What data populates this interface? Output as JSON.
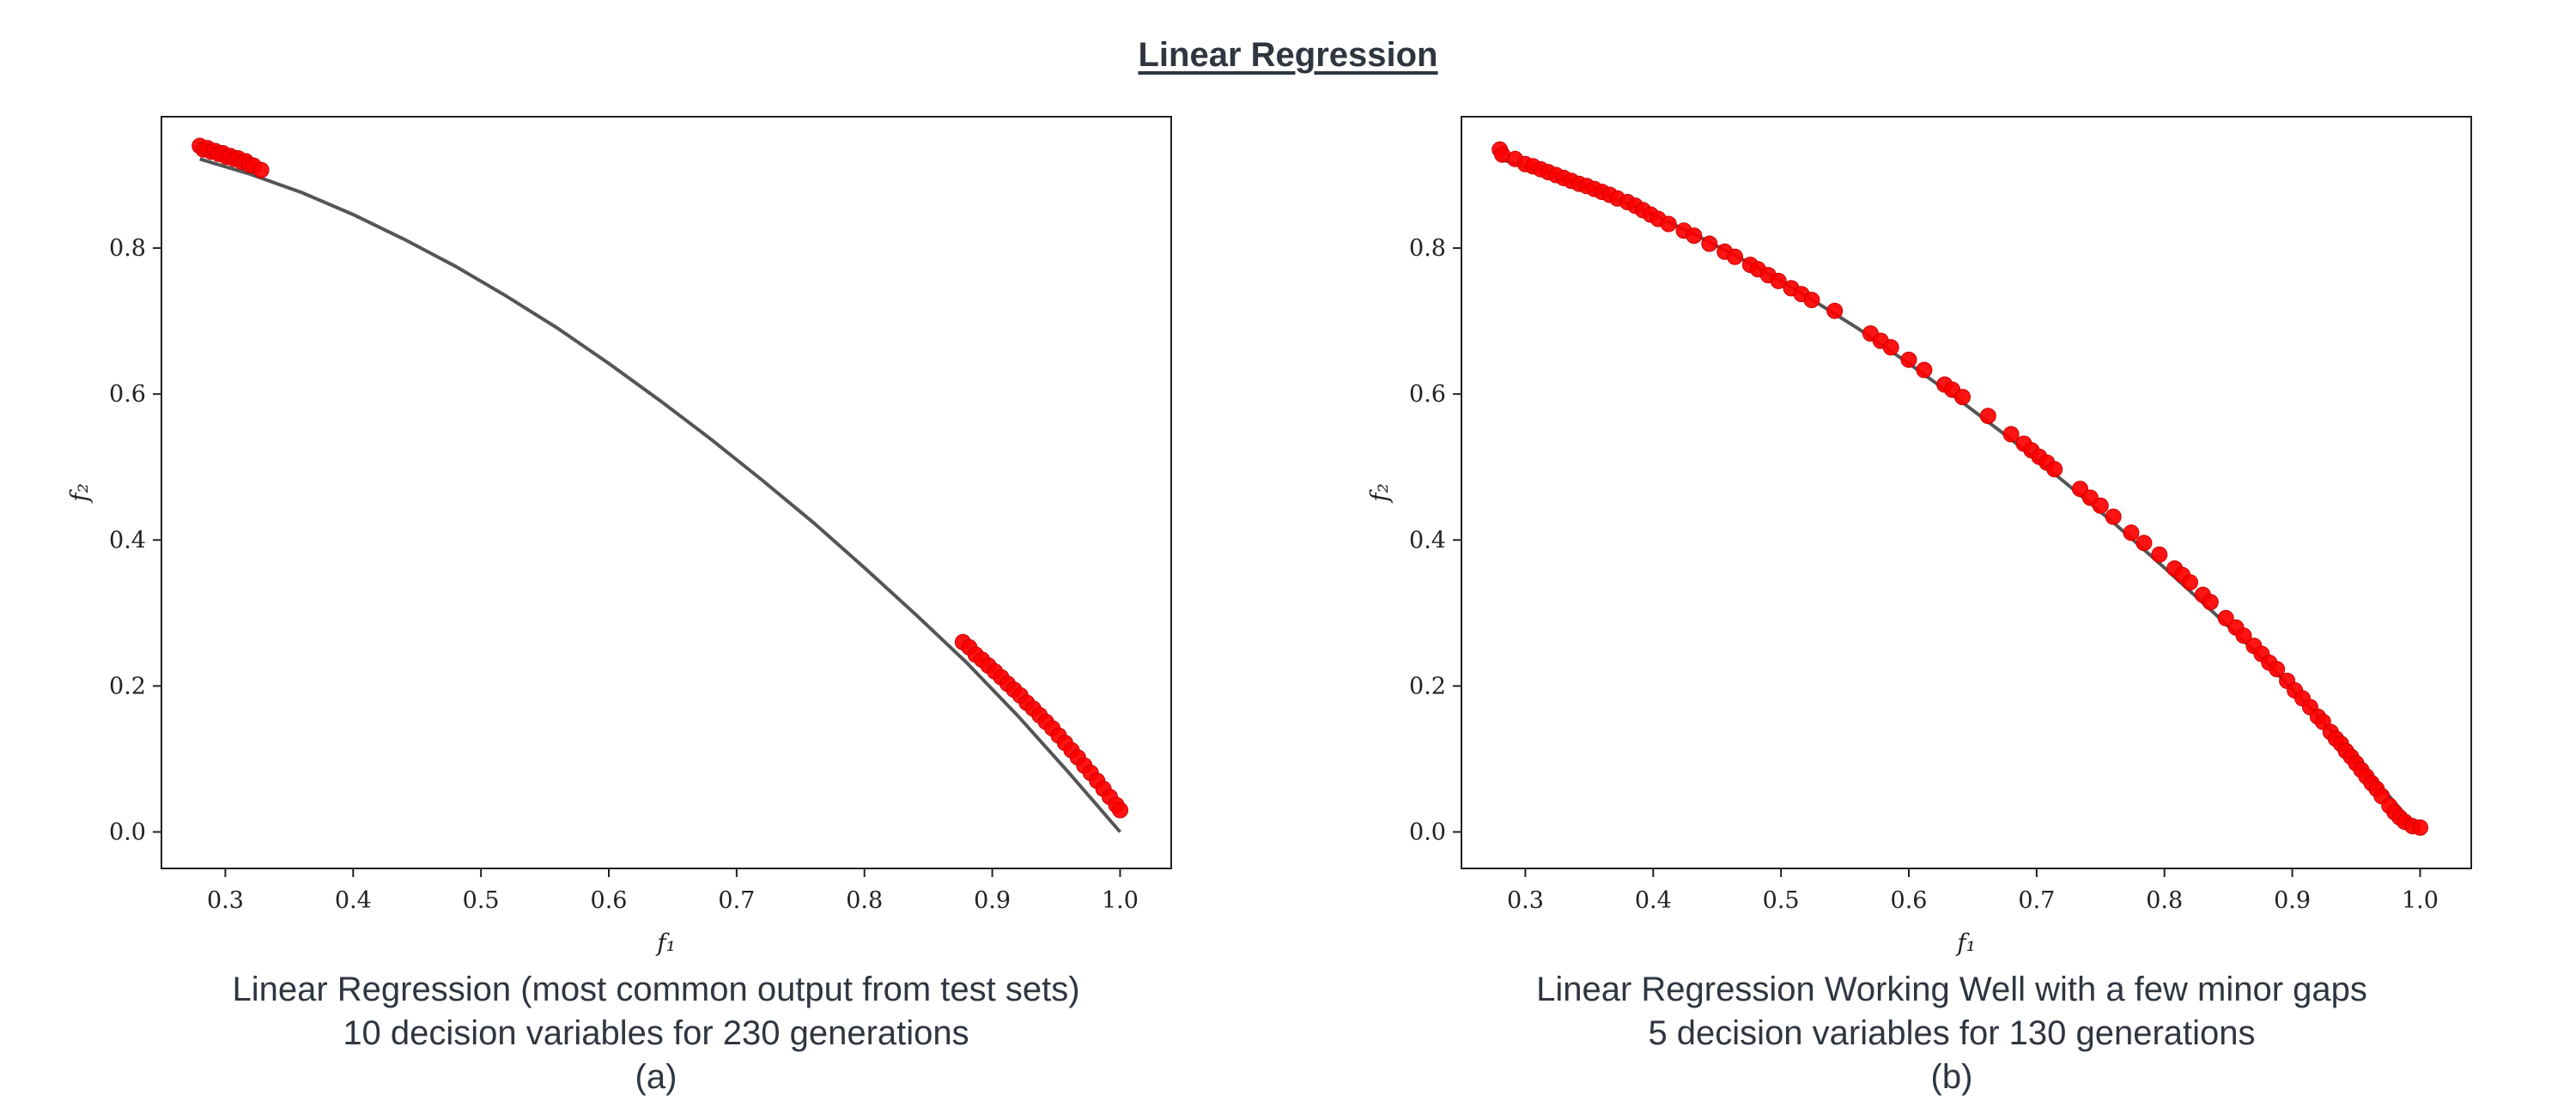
{
  "title": "Linear Regression",
  "chart_data": [
    {
      "type": "scatter",
      "panel": "(a)",
      "xlabel": "f₁",
      "ylabel": "f₂",
      "xlim": [
        0.25,
        1.04
      ],
      "ylim": [
        -0.05,
        0.98
      ],
      "xticks": [
        "0.3",
        "0.4",
        "0.5",
        "0.6",
        "0.7",
        "0.8",
        "0.9",
        "1.0"
      ],
      "yticks": [
        "0.0",
        "0.2",
        "0.4",
        "0.6",
        "0.8"
      ],
      "grid": false,
      "caption": [
        "Linear Regression (most common output from test sets)",
        "10 decision variables for 230 generations",
        "(a)"
      ],
      "reference_front": {
        "x": [
          0.28,
          0.32,
          0.36,
          0.4,
          0.44,
          0.48,
          0.52,
          0.56,
          0.6,
          0.64,
          0.68,
          0.72,
          0.76,
          0.8,
          0.84,
          0.88,
          0.92,
          0.96,
          1.0
        ],
        "y": [
          0.922,
          0.901,
          0.876,
          0.846,
          0.812,
          0.775,
          0.734,
          0.69,
          0.642,
          0.591,
          0.538,
          0.482,
          0.424,
          0.362,
          0.298,
          0.232,
          0.159,
          0.081,
          0.0
        ]
      },
      "points": {
        "x": [
          0.28,
          0.283,
          0.286,
          0.289,
          0.292,
          0.295,
          0.298,
          0.301,
          0.304,
          0.307,
          0.31,
          0.313,
          0.316,
          0.319,
          0.322,
          0.328,
          0.877,
          0.882,
          0.887,
          0.892,
          0.897,
          0.902,
          0.907,
          0.912,
          0.917,
          0.922,
          0.927,
          0.932,
          0.937,
          0.942,
          0.947,
          0.952,
          0.957,
          0.962,
          0.967,
          0.972,
          0.977,
          0.982,
          0.987,
          0.992,
          0.997,
          1.0
        ],
        "y": [
          0.94,
          0.935,
          0.937,
          0.932,
          0.933,
          0.929,
          0.93,
          0.925,
          0.926,
          0.922,
          0.923,
          0.918,
          0.919,
          0.914,
          0.913,
          0.907,
          0.26,
          0.253,
          0.243,
          0.236,
          0.228,
          0.22,
          0.212,
          0.203,
          0.195,
          0.187,
          0.177,
          0.169,
          0.16,
          0.151,
          0.142,
          0.132,
          0.122,
          0.112,
          0.102,
          0.091,
          0.081,
          0.07,
          0.059,
          0.048,
          0.037,
          0.03
        ]
      }
    },
    {
      "type": "scatter",
      "panel": "(b)",
      "xlabel": "f₁",
      "ylabel": "f₂",
      "xlim": [
        0.25,
        1.04
      ],
      "ylim": [
        -0.05,
        0.98
      ],
      "xticks": [
        "0.3",
        "0.4",
        "0.5",
        "0.6",
        "0.7",
        "0.8",
        "0.9",
        "1.0"
      ],
      "yticks": [
        "0.0",
        "0.2",
        "0.4",
        "0.6",
        "0.8"
      ],
      "grid": false,
      "caption": [
        "Linear Regression Working Well with a few minor gaps",
        "5 decision variables for 130 generations",
        "(b)"
      ],
      "reference_front": {
        "x": [
          0.28,
          0.32,
          0.36,
          0.4,
          0.44,
          0.48,
          0.52,
          0.56,
          0.6,
          0.64,
          0.68,
          0.72,
          0.76,
          0.8,
          0.84,
          0.88,
          0.92,
          0.96,
          1.0
        ],
        "y": [
          0.922,
          0.901,
          0.876,
          0.846,
          0.812,
          0.775,
          0.734,
          0.69,
          0.642,
          0.591,
          0.538,
          0.482,
          0.424,
          0.362,
          0.298,
          0.232,
          0.159,
          0.081,
          0.0
        ]
      },
      "points": {
        "x": [
          0.28,
          0.282,
          0.292,
          0.3,
          0.306,
          0.312,
          0.318,
          0.324,
          0.33,
          0.336,
          0.342,
          0.348,
          0.354,
          0.36,
          0.366,
          0.372,
          0.38,
          0.386,
          0.392,
          0.398,
          0.404,
          0.412,
          0.424,
          0.432,
          0.444,
          0.456,
          0.464,
          0.476,
          0.482,
          0.49,
          0.498,
          0.508,
          0.516,
          0.524,
          0.542,
          0.57,
          0.578,
          0.586,
          0.6,
          0.612,
          0.628,
          0.634,
          0.642,
          0.662,
          0.68,
          0.69,
          0.696,
          0.702,
          0.708,
          0.714,
          0.734,
          0.742,
          0.75,
          0.76,
          0.774,
          0.784,
          0.796,
          0.808,
          0.814,
          0.82,
          0.83,
          0.836,
          0.848,
          0.856,
          0.862,
          0.87,
          0.876,
          0.882,
          0.888,
          0.896,
          0.902,
          0.908,
          0.914,
          0.92,
          0.924,
          0.93,
          0.934,
          0.938,
          0.942,
          0.946,
          0.95,
          0.954,
          0.958,
          0.962,
          0.966,
          0.97,
          0.976,
          0.98,
          0.984,
          0.988,
          0.994,
          1.0
        ],
        "y": [
          0.935,
          0.928,
          0.922,
          0.915,
          0.912,
          0.908,
          0.904,
          0.9,
          0.896,
          0.892,
          0.888,
          0.885,
          0.881,
          0.877,
          0.873,
          0.868,
          0.863,
          0.858,
          0.852,
          0.846,
          0.84,
          0.833,
          0.824,
          0.817,
          0.806,
          0.795,
          0.788,
          0.777,
          0.771,
          0.763,
          0.755,
          0.745,
          0.737,
          0.729,
          0.714,
          0.683,
          0.673,
          0.664,
          0.647,
          0.633,
          0.613,
          0.606,
          0.596,
          0.57,
          0.545,
          0.532,
          0.523,
          0.514,
          0.506,
          0.497,
          0.47,
          0.458,
          0.447,
          0.432,
          0.41,
          0.396,
          0.38,
          0.361,
          0.352,
          0.342,
          0.325,
          0.315,
          0.293,
          0.28,
          0.269,
          0.255,
          0.244,
          0.232,
          0.223,
          0.207,
          0.194,
          0.183,
          0.171,
          0.158,
          0.151,
          0.137,
          0.128,
          0.121,
          0.111,
          0.103,
          0.094,
          0.085,
          0.076,
          0.067,
          0.059,
          0.049,
          0.036,
          0.027,
          0.02,
          0.014,
          0.008,
          0.006
        ]
      }
    }
  ]
}
